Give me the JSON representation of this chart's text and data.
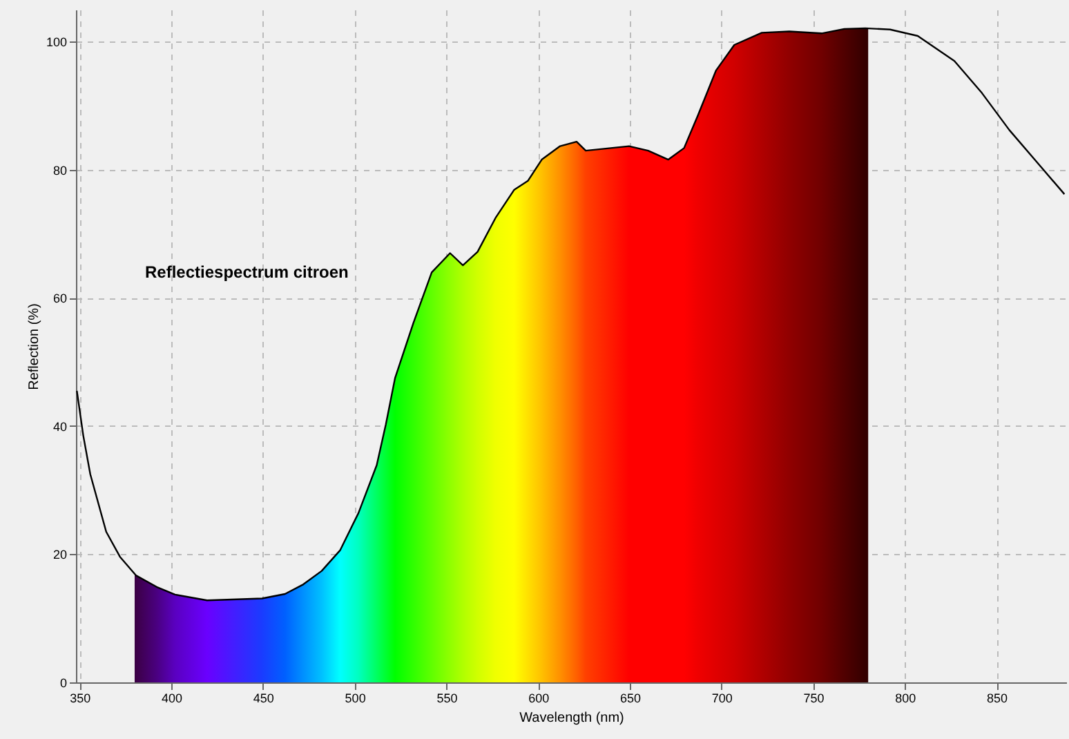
{
  "chart_data": {
    "type": "line",
    "xlabel": "Wavelength (nm)",
    "ylabel": "Reflection (%)",
    "annotations": [
      "Reflectiespectrum citroen"
    ],
    "xlim": [
      348,
      888
    ],
    "ylim": [
      0,
      105
    ],
    "xticks": [
      350,
      400,
      450,
      500,
      550,
      600,
      650,
      700,
      750,
      800,
      850
    ],
    "yticks": [
      0,
      20,
      40,
      60,
      80,
      100
    ],
    "grid": true,
    "series": [
      {
        "type": "area",
        "colors": [
          "#3c0046",
          "#3c0046",
          "#4a0080",
          "#5a00c0",
          "#6a00ff",
          "#1a3cff",
          "#0060ff",
          "#0090ff",
          "#00c0ff",
          "#00ffff",
          "#00ffc0",
          "#00ff60",
          "#00ff30",
          "#00ff00",
          "#30ff00",
          "#60ff00",
          "#90ff00",
          "#b0ff00",
          "#d0ff00",
          "#f0ff00",
          "#ffff00",
          "#ffe000",
          "#ffc000",
          "#ff9000",
          "#ff6000",
          "#ff4000",
          "#ff0000",
          "#ff0000",
          "#ff0000",
          "#ff0000",
          "#f00000",
          "#e00000",
          "#d00000",
          "#b00000",
          "#900000",
          "#700000",
          "#500000",
          "#340000",
          "#300000"
        ],
        "x": [
          380,
          380.7,
          392,
          402,
          419.5,
          449.5,
          462,
          472,
          482,
          492,
          502,
          512,
          517,
          522,
          532,
          542,
          552,
          559,
          567,
          577,
          587,
          594.5,
          602,
          612,
          621,
          626,
          649.6,
          660,
          671,
          679.6,
          687,
          697,
          707,
          722,
          737,
          754.6,
          767,
          778.4,
          780
        ],
        "values": [
          16.8,
          16.7,
          14.9,
          13.7,
          12.8,
          13.1,
          13.8,
          15.3,
          17.4,
          20.6,
          26.4,
          33.9,
          40.3,
          47.5,
          56.1,
          64,
          67,
          65.1,
          67.2,
          72.6,
          76.9,
          78.3,
          81.6,
          83.7,
          84.4,
          83,
          83.7,
          83,
          81.6,
          83.4,
          88.4,
          95.5,
          99.5,
          101.4,
          101.6,
          101.3,
          102,
          102.1,
          102.1
        ]
      },
      {
        "color": "#000000",
        "x": [
          348.5,
          352,
          355.8,
          364.5,
          372,
          380.7,
          392,
          402,
          419.5,
          449.5,
          462,
          472,
          482,
          492,
          502,
          512,
          517,
          522,
          532,
          542,
          552,
          559,
          567,
          577,
          587,
          594.5,
          602,
          612,
          621,
          626,
          649.6,
          660,
          671,
          679.6,
          687,
          697,
          707,
          722,
          737,
          754.6,
          767,
          778.4,
          792,
          807,
          827,
          842,
          857,
          872,
          887
        ],
        "values": [
          45.5,
          38.5,
          32.5,
          23.5,
          19.6,
          16.7,
          14.9,
          13.7,
          12.8,
          13.1,
          13.8,
          15.3,
          17.4,
          20.6,
          26.4,
          33.9,
          40.3,
          47.5,
          56.1,
          64,
          67,
          65.1,
          67.2,
          72.6,
          76.9,
          78.3,
          81.6,
          83.7,
          84.4,
          83,
          83.7,
          83,
          81.6,
          83.4,
          88.4,
          95.5,
          99.5,
          101.4,
          101.6,
          101.3,
          102,
          102.1,
          101.9,
          100.9,
          97,
          92,
          86.2,
          81.2,
          76.2
        ]
      }
    ]
  }
}
